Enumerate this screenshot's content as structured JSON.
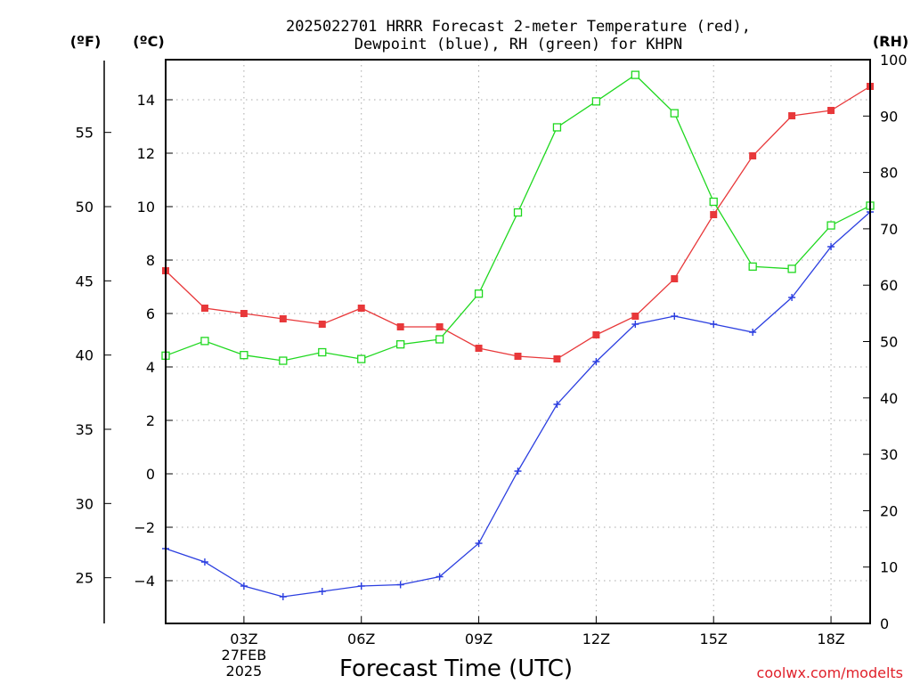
{
  "chart_data": {
    "type": "line",
    "title_lines": [
      "2025022701 HRRR Forecast 2-meter Temperature (red),",
      "Dewpoint (blue), RH (green) for KHPN"
    ],
    "xlabel": "Forecast Time (UTC)",
    "credit": "coolwx.com/modelts",
    "units": {
      "fahrenheit": "(ºF)",
      "celsius": "(ºC)",
      "rh": "(RH)"
    },
    "x": [
      1,
      2,
      3,
      4,
      5,
      6,
      7,
      8,
      9,
      10,
      11,
      12,
      13,
      14,
      15,
      16,
      17,
      18,
      19
    ],
    "xlim": [
      1,
      19
    ],
    "x_ticks": [
      {
        "x": 3,
        "label": "03Z",
        "sub": [
          "27FEB",
          "2025"
        ]
      },
      {
        "x": 6,
        "label": "06Z",
        "sub": []
      },
      {
        "x": 9,
        "label": "09Z",
        "sub": []
      },
      {
        "x": 12,
        "label": "12Z",
        "sub": []
      },
      {
        "x": 15,
        "label": "15Z",
        "sub": []
      },
      {
        "x": 18,
        "label": "18Z",
        "sub": []
      }
    ],
    "celsius_axis": {
      "ylim": [
        -5.6,
        15.5
      ],
      "ticks": [
        -4,
        -2,
        0,
        2,
        4,
        6,
        8,
        10,
        12,
        14
      ],
      "tick_labels": [
        "−4",
        "−2",
        "0",
        "2",
        "4",
        "6",
        "8",
        "10",
        "12",
        "14"
      ]
    },
    "fahrenheit_axis": {
      "ticks": [
        25,
        30,
        35,
        40,
        45,
        50,
        55
      ],
      "tick_labels": [
        "25",
        "30",
        "35",
        "40",
        "45",
        "50",
        "55"
      ]
    },
    "rh_axis": {
      "ylim": [
        0,
        100
      ],
      "ticks": [
        0,
        10,
        20,
        30,
        40,
        50,
        60,
        70,
        80,
        90,
        100
      ],
      "tick_labels": [
        "0",
        "10",
        "20",
        "30",
        "40",
        "50",
        "60",
        "70",
        "80",
        "90",
        "100"
      ]
    },
    "series": [
      {
        "axis": "celsius",
        "color": "#e8383a",
        "marker": "filled-square",
        "values": [
          7.6,
          6.2,
          6.0,
          5.8,
          5.6,
          6.2,
          5.5,
          5.5,
          4.7,
          4.4,
          4.3,
          5.2,
          5.9,
          7.3,
          9.7,
          11.9,
          13.4,
          13.6,
          14.5
        ]
      },
      {
        "axis": "celsius",
        "color": "#2c3fe0",
        "marker": "plus",
        "values": [
          -2.8,
          -3.3,
          -4.2,
          -4.6,
          -4.4,
          -4.2,
          -4.15,
          -3.85,
          -2.6,
          0.1,
          2.6,
          4.2,
          5.6,
          5.9,
          5.6,
          5.3,
          6.6,
          8.5,
          9.8
        ]
      },
      {
        "axis": "rh",
        "color": "#1fd81f",
        "marker": "open-square",
        "values": [
          47.5,
          50.1,
          47.6,
          46.6,
          48.1,
          46.9,
          49.5,
          50.4,
          58.5,
          72.9,
          88.0,
          92.6,
          97.3,
          90.5,
          74.8,
          63.3,
          62.9,
          70.6,
          74.1
        ]
      }
    ]
  }
}
